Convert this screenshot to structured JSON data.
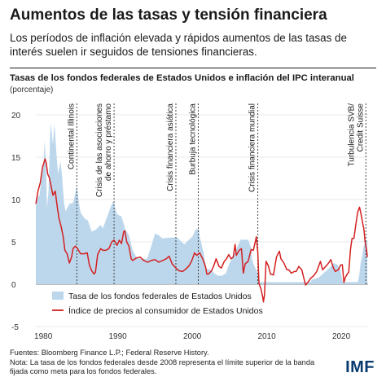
{
  "header": {
    "title": "Aumentos de las tasas y tensión financiera",
    "subtitle": "Los períodos de inflación elevada y rápidos aumentos de las tasas de interés suelen ir seguidos de tensiones financieras."
  },
  "chart_data": {
    "type": "area",
    "title": "Tasas de los fondos federales de Estados Unidos e inflación del IPC interanual",
    "ylabel": "(porcentaje)",
    "xlabel": "",
    "xlim": [
      1979,
      2023.6
    ],
    "ylim": [
      -5,
      20
    ],
    "xticks": [
      1980,
      1990,
      2000,
      2010,
      2020
    ],
    "yticks": [
      -5,
      0,
      5,
      10,
      15,
      20
    ],
    "grid": true,
    "legend_position": "bottom-left",
    "colors": {
      "fed_funds": "#bcd7ec",
      "cpi": "#d42020",
      "event_line": "#333333"
    },
    "series": [
      {
        "name": "Tasa de los fondos federales de Estados Unidos",
        "style": "area",
        "points": [
          [
            1979.0,
            10.0
          ],
          [
            1979.5,
            10.5
          ],
          [
            1979.8,
            13.0
          ],
          [
            1980.0,
            13.8
          ],
          [
            1980.2,
            17.0
          ],
          [
            1980.4,
            13.0
          ],
          [
            1980.5,
            9.0
          ],
          [
            1980.7,
            11.0
          ],
          [
            1980.9,
            17.0
          ],
          [
            1981.0,
            19.1
          ],
          [
            1981.3,
            16.5
          ],
          [
            1981.5,
            19.0
          ],
          [
            1981.8,
            15.0
          ],
          [
            1982.0,
            13.0
          ],
          [
            1982.3,
            14.5
          ],
          [
            1982.5,
            13.0
          ],
          [
            1982.8,
            9.5
          ],
          [
            1983.0,
            8.6
          ],
          [
            1983.5,
            9.5
          ],
          [
            1984.0,
            9.6
          ],
          [
            1984.5,
            11.5
          ],
          [
            1984.8,
            9.5
          ],
          [
            1985.0,
            8.5
          ],
          [
            1985.5,
            7.8
          ],
          [
            1986.0,
            7.5
          ],
          [
            1986.5,
            6.2
          ],
          [
            1987.0,
            6.4
          ],
          [
            1987.7,
            7.0
          ],
          [
            1988.0,
            6.6
          ],
          [
            1988.5,
            7.8
          ],
          [
            1989.0,
            9.0
          ],
          [
            1989.4,
            9.8
          ],
          [
            1989.8,
            8.5
          ],
          [
            1990.0,
            8.2
          ],
          [
            1990.5,
            8.0
          ],
          [
            1991.0,
            6.5
          ],
          [
            1991.5,
            5.8
          ],
          [
            1992.0,
            4.0
          ],
          [
            1992.5,
            3.2
          ],
          [
            1993.0,
            3.0
          ],
          [
            1993.9,
            3.0
          ],
          [
            1994.0,
            3.2
          ],
          [
            1994.5,
            4.5
          ],
          [
            1995.0,
            6.0
          ],
          [
            1995.5,
            5.8
          ],
          [
            1996.0,
            5.4
          ],
          [
            1997.0,
            5.5
          ],
          [
            1998.0,
            5.5
          ],
          [
            1998.8,
            4.8
          ],
          [
            1999.0,
            4.75
          ],
          [
            1999.5,
            5.2
          ],
          [
            2000.0,
            5.6
          ],
          [
            2000.5,
            6.5
          ],
          [
            2000.9,
            6.5
          ],
          [
            2001.0,
            5.6
          ],
          [
            2001.5,
            3.8
          ],
          [
            2001.9,
            1.8
          ],
          [
            2002.5,
            1.7
          ],
          [
            2003.0,
            1.25
          ],
          [
            2003.5,
            1.0
          ],
          [
            2004.0,
            1.0
          ],
          [
            2004.5,
            1.3
          ],
          [
            2005.0,
            2.5
          ],
          [
            2005.5,
            3.3
          ],
          [
            2006.0,
            4.3
          ],
          [
            2006.5,
            5.25
          ],
          [
            2007.5,
            5.25
          ],
          [
            2007.9,
            4.3
          ],
          [
            2008.0,
            3.0
          ],
          [
            2008.3,
            2.2
          ],
          [
            2008.7,
            1.5
          ],
          [
            2008.99,
            0.25
          ],
          [
            2009.0,
            0.25
          ],
          [
            2015.9,
            0.25
          ],
          [
            2016.0,
            0.5
          ],
          [
            2017.0,
            0.8
          ],
          [
            2017.5,
            1.2
          ],
          [
            2018.0,
            1.6
          ],
          [
            2018.5,
            2.0
          ],
          [
            2019.0,
            2.5
          ],
          [
            2019.5,
            2.3
          ],
          [
            2019.9,
            1.6
          ],
          [
            2020.2,
            0.25
          ],
          [
            2022.2,
            0.25
          ],
          [
            2022.4,
            1.0
          ],
          [
            2022.6,
            2.5
          ],
          [
            2022.8,
            3.25
          ],
          [
            2023.0,
            4.5
          ],
          [
            2023.3,
            5.0
          ],
          [
            2023.5,
            5.25
          ]
        ]
      },
      {
        "name": "Índice de precios al consumidor de Estados Unidos",
        "style": "line",
        "points": [
          [
            1979.0,
            9.5
          ],
          [
            1979.3,
            11.0
          ],
          [
            1979.6,
            12.0
          ],
          [
            1979.9,
            13.8
          ],
          [
            1980.1,
            14.4
          ],
          [
            1980.25,
            14.8
          ],
          [
            1980.4,
            14.3
          ],
          [
            1980.6,
            13.0
          ],
          [
            1980.8,
            12.6
          ],
          [
            1981.0,
            11.8
          ],
          [
            1981.3,
            10.5
          ],
          [
            1981.6,
            11.0
          ],
          [
            1981.9,
            9.0
          ],
          [
            1982.1,
            7.8
          ],
          [
            1982.4,
            6.8
          ],
          [
            1982.7,
            5.5
          ],
          [
            1982.9,
            4.0
          ],
          [
            1983.2,
            3.6
          ],
          [
            1983.5,
            2.5
          ],
          [
            1983.8,
            3.2
          ],
          [
            1984.0,
            4.2
          ],
          [
            1984.3,
            4.5
          ],
          [
            1984.6,
            4.2
          ],
          [
            1985.0,
            3.6
          ],
          [
            1985.5,
            3.6
          ],
          [
            1985.9,
            3.7
          ],
          [
            1986.2,
            2.2
          ],
          [
            1986.5,
            1.6
          ],
          [
            1986.8,
            1.2
          ],
          [
            1987.0,
            1.4
          ],
          [
            1987.3,
            3.5
          ],
          [
            1987.7,
            4.2
          ],
          [
            1988.0,
            4.0
          ],
          [
            1988.4,
            4.0
          ],
          [
            1988.8,
            4.2
          ],
          [
            1989.2,
            5.0
          ],
          [
            1989.5,
            5.2
          ],
          [
            1989.9,
            4.6
          ],
          [
            1990.2,
            5.2
          ],
          [
            1990.5,
            4.8
          ],
          [
            1990.8,
            6.2
          ],
          [
            1990.95,
            6.3
          ],
          [
            1991.2,
            5.0
          ],
          [
            1991.5,
            4.5
          ],
          [
            1991.8,
            3.0
          ],
          [
            1992.0,
            2.8
          ],
          [
            1992.5,
            3.1
          ],
          [
            1993.0,
            3.2
          ],
          [
            1993.5,
            2.8
          ],
          [
            1994.0,
            2.6
          ],
          [
            1994.5,
            2.8
          ],
          [
            1995.0,
            2.9
          ],
          [
            1995.5,
            2.6
          ],
          [
            1996.0,
            2.8
          ],
          [
            1996.5,
            3.0
          ],
          [
            1996.9,
            3.3
          ],
          [
            1997.3,
            2.4
          ],
          [
            1997.8,
            1.9
          ],
          [
            1998.2,
            1.6
          ],
          [
            1998.7,
            1.5
          ],
          [
            1999.0,
            1.7
          ],
          [
            1999.5,
            2.1
          ],
          [
            1999.9,
            2.7
          ],
          [
            2000.3,
            3.7
          ],
          [
            2000.6,
            3.4
          ],
          [
            2001.0,
            3.7
          ],
          [
            2001.4,
            3.0
          ],
          [
            2001.8,
            2.0
          ],
          [
            2001.95,
            1.2
          ],
          [
            2002.2,
            1.2
          ],
          [
            2002.6,
            1.6
          ],
          [
            2002.9,
            2.2
          ],
          [
            2003.2,
            3.0
          ],
          [
            2003.6,
            2.1
          ],
          [
            2003.9,
            1.9
          ],
          [
            2004.3,
            2.7
          ],
          [
            2004.6,
            3.0
          ],
          [
            2004.9,
            3.5
          ],
          [
            2005.2,
            3.0
          ],
          [
            2005.5,
            3.2
          ],
          [
            2005.75,
            4.7
          ],
          [
            2005.9,
            3.4
          ],
          [
            2006.3,
            4.0
          ],
          [
            2006.6,
            4.2
          ],
          [
            2006.85,
            1.3
          ],
          [
            2007.1,
            2.4
          ],
          [
            2007.5,
            2.7
          ],
          [
            2007.9,
            4.1
          ],
          [
            2008.2,
            4.0
          ],
          [
            2008.5,
            5.2
          ],
          [
            2008.6,
            5.6
          ],
          [
            2008.8,
            3.7
          ],
          [
            2008.95,
            0.1
          ],
          [
            2009.2,
            -0.5
          ],
          [
            2009.45,
            -1.5
          ],
          [
            2009.55,
            -2.1
          ],
          [
            2009.7,
            -1.3
          ],
          [
            2009.9,
            2.7
          ],
          [
            2010.2,
            2.2
          ],
          [
            2010.5,
            1.2
          ],
          [
            2010.9,
            1.1
          ],
          [
            2011.3,
            3.2
          ],
          [
            2011.7,
            3.9
          ],
          [
            2011.9,
            3.0
          ],
          [
            2012.3,
            2.5
          ],
          [
            2012.7,
            1.7
          ],
          [
            2012.95,
            1.7
          ],
          [
            2013.3,
            1.3
          ],
          [
            2013.7,
            1.5
          ],
          [
            2013.95,
            1.5
          ],
          [
            2014.3,
            2.1
          ],
          [
            2014.7,
            1.7
          ],
          [
            2014.95,
            0.8
          ],
          [
            2015.2,
            -0.1
          ],
          [
            2015.5,
            0.2
          ],
          [
            2015.9,
            0.7
          ],
          [
            2016.3,
            1.0
          ],
          [
            2016.7,
            1.5
          ],
          [
            2016.95,
            2.1
          ],
          [
            2017.2,
            2.7
          ],
          [
            2017.5,
            1.7
          ],
          [
            2017.9,
            2.1
          ],
          [
            2018.3,
            2.5
          ],
          [
            2018.6,
            2.9
          ],
          [
            2018.95,
            1.9
          ],
          [
            2019.2,
            1.5
          ],
          [
            2019.6,
            1.7
          ],
          [
            2019.95,
            2.3
          ],
          [
            2020.15,
            2.3
          ],
          [
            2020.35,
            0.2
          ],
          [
            2020.55,
            0.8
          ],
          [
            2020.8,
            1.2
          ],
          [
            2021.0,
            1.4
          ],
          [
            2021.25,
            4.2
          ],
          [
            2021.45,
            5.4
          ],
          [
            2021.7,
            5.4
          ],
          [
            2021.95,
            7.0
          ],
          [
            2022.2,
            8.5
          ],
          [
            2022.45,
            9.1
          ],
          [
            2022.65,
            8.3
          ],
          [
            2022.9,
            7.1
          ],
          [
            2023.05,
            6.4
          ],
          [
            2023.2,
            5.0
          ],
          [
            2023.4,
            4.0
          ],
          [
            2023.5,
            3.2
          ]
        ]
      }
    ],
    "events": [
      {
        "year": 1984.5,
        "label": "Continental Illinois"
      },
      {
        "year": 1989.5,
        "label_lines": [
          "Crisis de las asociaciones",
          "de ahorro y préstamo"
        ]
      },
      {
        "year": 1997.8,
        "label": "Crisis financiera asiática"
      },
      {
        "year": 2000.8,
        "label": "Burbuja tecnológica"
      },
      {
        "year": 2008.8,
        "label": "Crisis financiera mundial"
      },
      {
        "year": 2023.3,
        "label_lines": [
          "Turbulencia SVB/",
          "Credit Suisse"
        ]
      }
    ]
  },
  "footer": {
    "source": "Fuentes: Bloomberg Finance L.P.; Federal Reserve History.",
    "note": "Nota: La tasa de los fondos federales desde 2008 representa el límite superior de la banda fijada como meta para los fondos federales.",
    "logo": "IMF"
  }
}
